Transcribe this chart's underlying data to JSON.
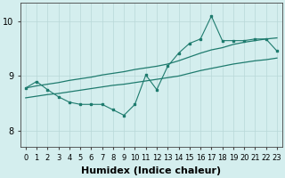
{
  "xlabel": "Humidex (Indice chaleur)",
  "bg_color": "#d4eeee",
  "line_color": "#1e7b6e",
  "grid_color": "#b8d8d8",
  "xlim": [
    -0.5,
    23.5
  ],
  "ylim": [
    7.7,
    10.35
  ],
  "yticks": [
    8,
    9,
    10
  ],
  "xticks": [
    0,
    1,
    2,
    3,
    4,
    5,
    6,
    7,
    8,
    9,
    10,
    11,
    12,
    13,
    14,
    15,
    16,
    17,
    18,
    19,
    20,
    21,
    22,
    23
  ],
  "x": [
    0,
    1,
    2,
    3,
    4,
    5,
    6,
    7,
    8,
    9,
    10,
    11,
    12,
    13,
    14,
    15,
    16,
    17,
    18,
    19,
    20,
    21,
    22,
    23
  ],
  "y_zigzag": [
    8.78,
    8.9,
    8.75,
    8.62,
    8.52,
    8.48,
    8.48,
    8.48,
    8.38,
    8.28,
    8.48,
    9.02,
    8.75,
    9.18,
    9.42,
    9.6,
    9.68,
    10.1,
    9.65,
    9.65,
    9.65,
    9.68,
    9.68,
    9.46
  ],
  "y_upper": [
    8.78,
    8.82,
    8.85,
    8.88,
    8.92,
    8.95,
    8.98,
    9.02,
    9.05,
    9.08,
    9.12,
    9.15,
    9.18,
    9.22,
    9.28,
    9.35,
    9.42,
    9.48,
    9.52,
    9.58,
    9.62,
    9.65,
    9.68,
    9.7
  ],
  "y_lower": [
    8.6,
    8.63,
    8.66,
    8.68,
    8.71,
    8.74,
    8.77,
    8.8,
    8.83,
    8.85,
    8.88,
    8.91,
    8.94,
    8.97,
    9.0,
    9.05,
    9.1,
    9.14,
    9.18,
    9.22,
    9.25,
    9.28,
    9.3,
    9.33
  ],
  "fontsize_xlabel": 8,
  "fontsize_ticks": 7
}
